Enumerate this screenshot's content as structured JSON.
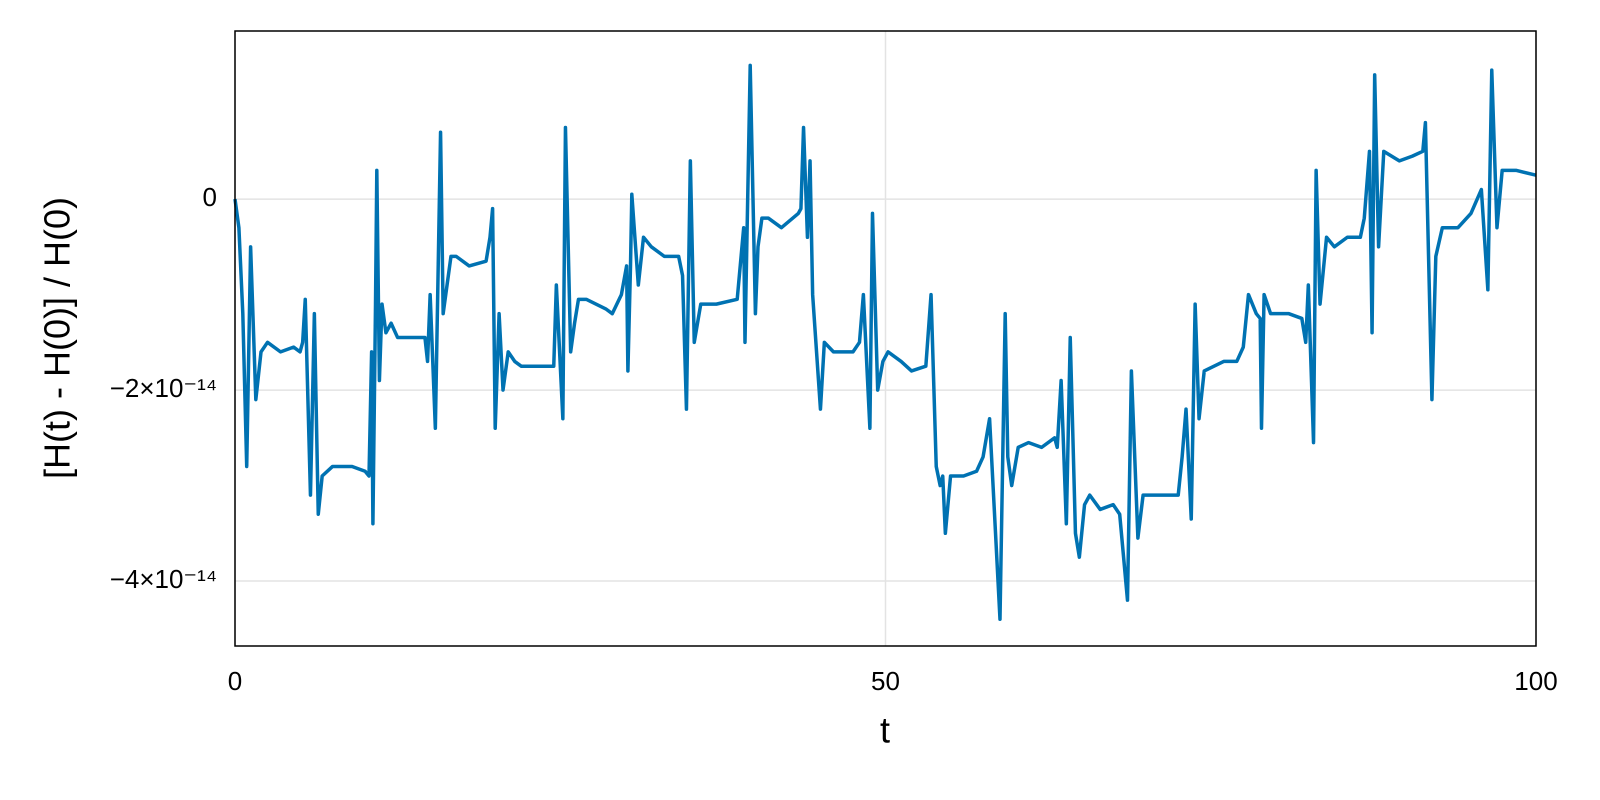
{
  "chart_data": {
    "type": "line",
    "xlabel": "t",
    "ylabel": "[H(t) - H(0)] / H(0)",
    "x": [
      0,
      0.3,
      0.6,
      0.9,
      1.2,
      1.6,
      2,
      2.5,
      3.5,
      4.5,
      5,
      5.2,
      5.4,
      5.8,
      6.1,
      6.4,
      6.7,
      7.5,
      9,
      10,
      10.3,
      10.5,
      10.6,
      10.8,
      10.9,
      11.1,
      11.3,
      11.6,
      12,
      12.5,
      14.6,
      14.8,
      15,
      15.4,
      15.8,
      16,
      16.3,
      16.6,
      17,
      18,
      19.3,
      19.6,
      19.8,
      20,
      20.3,
      20.6,
      21,
      21.5,
      22,
      24.5,
      24.7,
      25.2,
      25.4,
      25.8,
      26.1,
      26.4,
      27,
      28.5,
      29,
      29.7,
      30.1,
      30.2,
      30.4,
      30.5,
      31,
      31.4,
      32,
      33,
      34.1,
      34.4,
      34.7,
      35,
      35.3,
      35.8,
      37,
      38.6,
      39.1,
      39.2,
      39.6,
      40,
      40.2,
      40.5,
      41,
      42,
      43.3,
      43.5,
      43.7,
      44,
      44.2,
      44.4,
      45,
      45.3,
      46,
      47.5,
      48,
      48.3,
      48.8,
      49,
      49.4,
      49.8,
      50.2,
      51.2,
      52,
      53.1,
      53.5,
      53.9,
      54.2,
      54.4,
      54.6,
      55,
      56,
      57,
      57.5,
      58,
      58.8,
      59.2,
      59.4,
      59.7,
      60.2,
      61,
      62,
      63,
      63.2,
      63.5,
      63.9,
      64.2,
      64.6,
      64.9,
      65.3,
      65.7,
      66.5,
      67.5,
      68,
      68.6,
      68.9,
      69.4,
      69.8,
      71,
      72.5,
      72.8,
      73.1,
      73.5,
      73.8,
      74.1,
      74.5,
      76,
      77,
      77.5,
      77.9,
      78.5,
      78.8,
      78.9,
      79.1,
      79.6,
      81,
      82,
      82.3,
      82.5,
      82.9,
      83.1,
      83.4,
      83.9,
      84.5,
      85.5,
      86.5,
      86.8,
      87.2,
      87.4,
      87.6,
      87.9,
      88.3,
      89.5,
      90.5,
      91.3,
      91.5,
      92,
      92.3,
      92.8,
      94,
      95,
      95.8,
      96.3,
      96.6,
      97,
      97.4,
      98.5,
      100
    ],
    "values": [
      0,
      -3e-15,
      -1.2e-14,
      -2.8e-14,
      -5e-15,
      -2.1e-14,
      -1.6e-14,
      -1.5e-14,
      -1.6e-14,
      -1.55e-14,
      -1.6e-14,
      -1.5e-14,
      -1.05e-14,
      -3.1e-14,
      -1.2e-14,
      -3.3e-14,
      -2.9e-14,
      -2.8e-14,
      -2.8e-14,
      -2.85e-14,
      -2.9e-14,
      -1.6e-14,
      -3.4e-14,
      -1.1e-14,
      3e-15,
      -1.9e-14,
      -1.1e-14,
      -1.4e-14,
      -1.3e-14,
      -1.45e-14,
      -1.45e-14,
      -1.7e-14,
      -1e-14,
      -2.4e-14,
      7e-15,
      -1.2e-14,
      -9e-15,
      -6e-15,
      -6e-15,
      -7e-15,
      -6.5e-15,
      -4e-15,
      -1e-15,
      -2.4e-14,
      -1.2e-14,
      -2e-14,
      -1.6e-14,
      -1.7e-14,
      -1.75e-14,
      -1.75e-14,
      -9e-15,
      -2.3e-14,
      7.5e-15,
      -1.6e-14,
      -1.3e-14,
      -1.05e-14,
      -1.05e-14,
      -1.15e-14,
      -1.2e-14,
      -1e-14,
      -7e-15,
      -1.8e-14,
      -7e-15,
      5e-16,
      -9e-15,
      -4e-15,
      -5e-15,
      -6e-15,
      -6e-15,
      -8e-15,
      -2.2e-14,
      4e-15,
      -1.5e-14,
      -1.1e-14,
      -1.1e-14,
      -1.05e-14,
      -3e-15,
      -1.5e-14,
      1.4e-14,
      -1.2e-14,
      -5e-15,
      -2e-15,
      -2e-15,
      -3e-15,
      -1.5e-15,
      -1e-15,
      7.5e-15,
      -4e-15,
      4e-15,
      -1e-14,
      -2.2e-14,
      -1.5e-14,
      -1.6e-14,
      -1.6e-14,
      -1.5e-14,
      -1e-14,
      -2.4e-14,
      -1.5e-15,
      -2e-14,
      -1.7e-14,
      -1.6e-14,
      -1.7e-14,
      -1.8e-14,
      -1.75e-14,
      -1e-14,
      -2.8e-14,
      -3e-14,
      -2.9e-14,
      -3.5e-14,
      -2.9e-14,
      -2.9e-14,
      -2.85e-14,
      -2.7e-14,
      -2.3e-14,
      -4.4e-14,
      -1.2e-14,
      -2.7e-14,
      -3e-14,
      -2.6e-14,
      -2.55e-14,
      -2.6e-14,
      -2.5e-14,
      -2.6e-14,
      -1.9e-14,
      -3.4e-14,
      -1.45e-14,
      -3.5e-14,
      -3.75e-14,
      -3.2e-14,
      -3.1e-14,
      -3.25e-14,
      -3.2e-14,
      -3.3e-14,
      -4.2e-14,
      -1.8e-14,
      -3.55e-14,
      -3.1e-14,
      -3.1e-14,
      -3.1e-14,
      -2.7e-14,
      -2.2e-14,
      -3.35e-14,
      -1.1e-14,
      -2.3e-14,
      -1.8e-14,
      -1.7e-14,
      -1.7e-14,
      -1.55e-14,
      -1e-14,
      -1.2e-14,
      -1.25e-14,
      -2.4e-14,
      -1e-14,
      -1.2e-14,
      -1.2e-14,
      -1.25e-14,
      -1.5e-14,
      -9e-15,
      -2.55e-14,
      3e-15,
      -1.1e-14,
      -4e-15,
      -5e-15,
      -4e-15,
      -4e-15,
      -2e-15,
      5e-15,
      -1.4e-14,
      1.3e-14,
      -5e-15,
      5e-15,
      4e-15,
      4.5e-15,
      5e-15,
      8e-15,
      -2.1e-14,
      -6e-15,
      -3e-15,
      -3e-15,
      -1.5e-15,
      1e-15,
      -9.5e-15,
      1.35e-14,
      -3e-15,
      3e-15,
      3e-15,
      2.5e-15
    ],
    "color": "#0072b2",
    "xlim": [
      0,
      100
    ],
    "xticks": [
      0,
      50,
      100
    ],
    "ylim": [
      -4.68e-14,
      1.76e-14
    ],
    "yticks": [
      {
        "value": -4e-14,
        "label": "−4×10⁻¹⁴"
      },
      {
        "value": -2e-14,
        "label": "−2×10⁻¹⁴"
      },
      0
    ],
    "grid": true
  }
}
